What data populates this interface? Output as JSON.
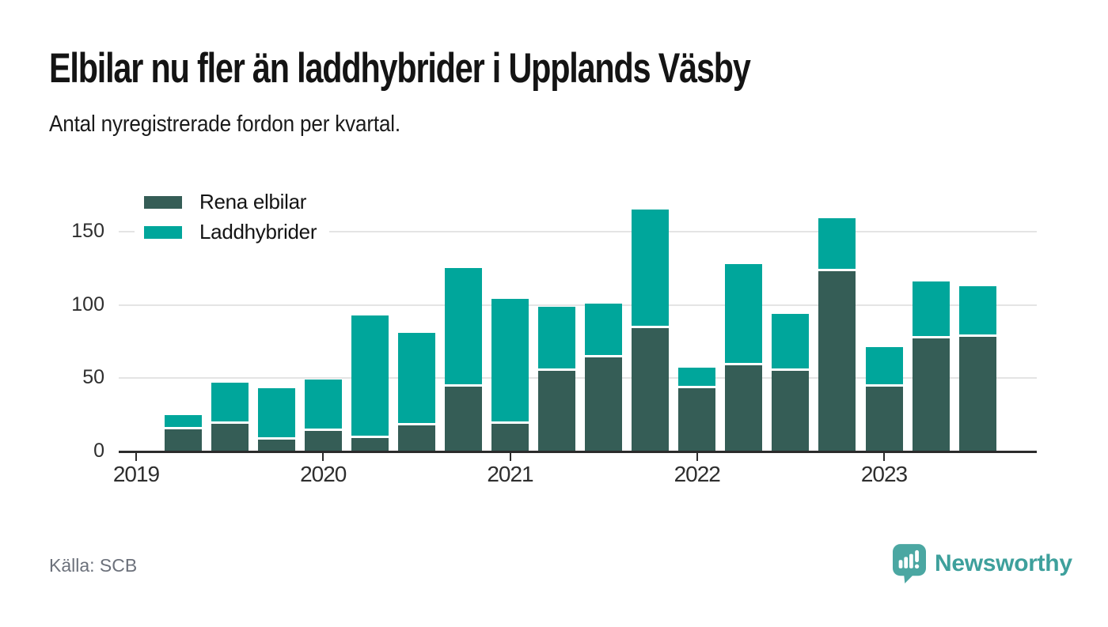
{
  "header": {
    "title": "Elbilar nu fler än laddhybrider i Upplands Väsby",
    "subtitle": "Antal nyregistrerade fordon per kvartal."
  },
  "chart_data": {
    "type": "bar",
    "stacked": true,
    "title": "Elbilar nu fler än laddhybrider i Upplands Väsby",
    "subtitle": "Antal nyregistrerade fordon per kvartal.",
    "categories": [
      "2019 K2",
      "2019 K3",
      "2019 K4",
      "2020 K1",
      "2020 K2",
      "2020 K3",
      "2020 K4",
      "2021 K1",
      "2021 K2",
      "2021 K3",
      "2021 K4",
      "2022 K1",
      "2022 K2",
      "2022 K3",
      "2022 K4",
      "2023 K1",
      "2023 K2",
      "2023 K3"
    ],
    "series": [
      {
        "name": "Rena elbilar",
        "color": "#355d56",
        "values": [
          15,
          19,
          8,
          14,
          9,
          18,
          44,
          19,
          55,
          64,
          84,
          43,
          59,
          55,
          123,
          44,
          77,
          78
        ]
      },
      {
        "name": "Laddhybrider",
        "color": "#00a69b",
        "values": [
          10,
          28,
          35,
          35,
          84,
          63,
          81,
          85,
          44,
          37,
          81,
          14,
          69,
          39,
          36,
          27,
          39,
          35
        ]
      }
    ],
    "stack_totals": [
      25,
      47,
      43,
      49,
      93,
      81,
      125,
      104,
      99,
      101,
      165,
      57,
      128,
      94,
      159,
      71,
      116,
      113
    ],
    "ylabel": "",
    "ylim": [
      0,
      175
    ],
    "yticks": [
      0,
      50,
      100,
      150
    ],
    "x_year_ticks": [
      "2019",
      "2020",
      "2021",
      "2022",
      "2023"
    ],
    "grid": "horizontal",
    "legend_position": "top-left"
  },
  "footer": {
    "source": "Källa: SCB",
    "brand": "Newsworthy"
  },
  "colors": {
    "elbilar": "#355d56",
    "laddhybrider": "#00a69b",
    "gridline": "#e4e4e4",
    "axis": "#2b2b2b",
    "brand_teal": "#3ea09c"
  }
}
